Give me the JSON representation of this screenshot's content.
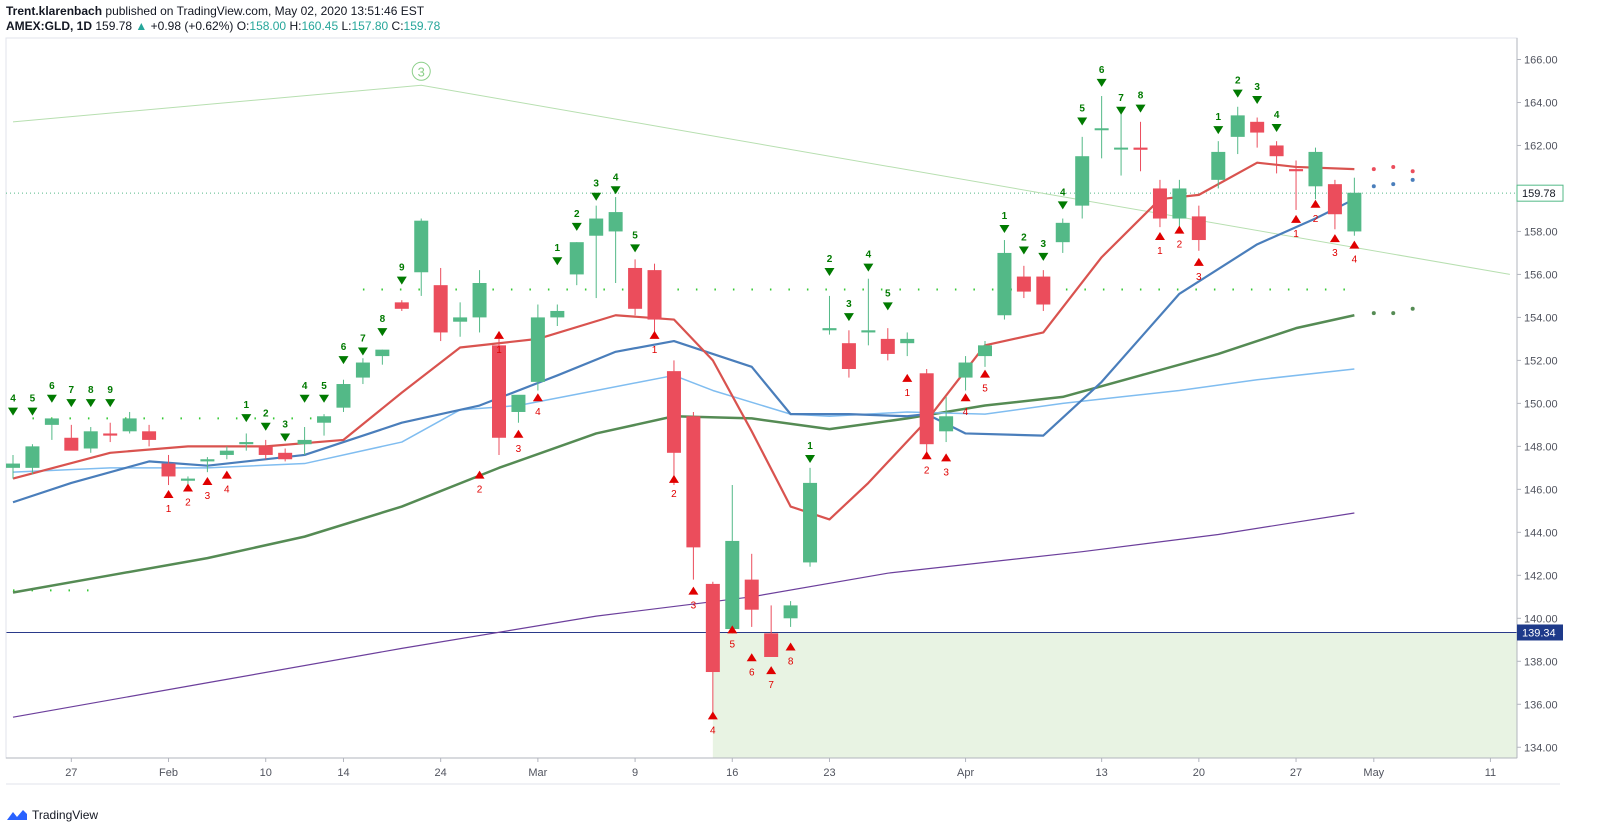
{
  "header": {
    "author": "Trent.klarenbach",
    "published": "published on TradingView.com, May 02, 2020 13:51:46 EST",
    "symbol": "AMEX:GLD, 1D",
    "last": "159.78",
    "change": "+0.98 (+0.62%)",
    "o_label": "O:",
    "o_value": "158.00",
    "h_label": "H:",
    "h_value": "160.45",
    "l_label": "L:",
    "l_value": "157.80",
    "c_label": "C:",
    "c_value": "159.78"
  },
  "footer": {
    "brand": "TradingView"
  },
  "colors": {
    "up": "#53b987",
    "down": "#eb4d5c",
    "ema_fast": "#d9534f",
    "ema_blue": "#4a7ebb",
    "ema_lightblue": "#80bdf0",
    "ema_green": "#558b54",
    "sma_purple": "#6c3f9c",
    "seq_green": "#007a00",
    "seq_red": "#e00000",
    "zone": "#e8f3e3",
    "hline": "#2a3a8a"
  },
  "chart_data": {
    "type": "candlestick",
    "ylim": [
      133.5,
      167.0
    ],
    "yticks": [
      "134.00",
      "136.00",
      "138.00",
      "140.00",
      "142.00",
      "144.00",
      "146.00",
      "148.00",
      "150.00",
      "152.00",
      "154.00",
      "156.00",
      "158.00",
      "160.00",
      "162.00",
      "164.00",
      "166.00"
    ],
    "xticks": [
      {
        "label": "27",
        "x": 3
      },
      {
        "label": "Feb",
        "x": 8
      },
      {
        "label": "10",
        "x": 13
      },
      {
        "label": "14",
        "x": 17
      },
      {
        "label": "24",
        "x": 22
      },
      {
        "label": "Mar",
        "x": 27
      },
      {
        "label": "9",
        "x": 32
      },
      {
        "label": "16",
        "x": 37
      },
      {
        "label": "23",
        "x": 42
      },
      {
        "label": "Apr",
        "x": 49
      },
      {
        "label": "13",
        "x": 56
      },
      {
        "label": "20",
        "x": 61
      },
      {
        "label": "27",
        "x": 66
      },
      {
        "label": "May",
        "x": 70
      },
      {
        "label": "11",
        "x": 76
      }
    ],
    "price_labels": {
      "last": "159.78",
      "line": "139.34"
    },
    "wave_label": "3",
    "candles": [
      {
        "x": 0,
        "o": 147.0,
        "h": 147.6,
        "l": 146.5,
        "c": 147.2
      },
      {
        "x": 1,
        "o": 147.0,
        "h": 148.1,
        "l": 146.7,
        "c": 148.0
      },
      {
        "x": 2,
        "o": 149.0,
        "h": 149.3,
        "l": 148.3,
        "c": 149.3
      },
      {
        "x": 3,
        "o": 148.4,
        "h": 149.0,
        "l": 148.0,
        "c": 147.8
      },
      {
        "x": 4,
        "o": 147.9,
        "h": 148.9,
        "l": 147.7,
        "c": 148.7
      },
      {
        "x": 5,
        "o": 148.6,
        "h": 149.1,
        "l": 148.2,
        "c": 148.5
      },
      {
        "x": 6,
        "o": 148.7,
        "h": 149.6,
        "l": 148.6,
        "c": 149.3
      },
      {
        "x": 7,
        "o": 148.7,
        "h": 149.0,
        "l": 148.0,
        "c": 148.3
      },
      {
        "x": 8,
        "o": 147.2,
        "h": 147.6,
        "l": 146.2,
        "c": 146.6
      },
      {
        "x": 9,
        "o": 146.4,
        "h": 146.6,
        "l": 146.2,
        "c": 146.5
      },
      {
        "x": 10,
        "o": 147.3,
        "h": 147.5,
        "l": 146.8,
        "c": 147.4
      },
      {
        "x": 11,
        "o": 147.6,
        "h": 148.0,
        "l": 147.4,
        "c": 147.8
      },
      {
        "x": 12,
        "o": 148.1,
        "h": 148.6,
        "l": 147.8,
        "c": 148.2
      },
      {
        "x": 13,
        "o": 148.0,
        "h": 148.3,
        "l": 147.4,
        "c": 147.6
      },
      {
        "x": 14,
        "o": 147.7,
        "h": 147.9,
        "l": 147.3,
        "c": 147.4
      },
      {
        "x": 15,
        "o": 148.1,
        "h": 148.9,
        "l": 147.6,
        "c": 148.3
      },
      {
        "x": 16,
        "o": 149.1,
        "h": 149.5,
        "l": 148.5,
        "c": 149.4
      },
      {
        "x": 17,
        "o": 149.8,
        "h": 151.1,
        "l": 149.6,
        "c": 150.9
      },
      {
        "x": 18,
        "o": 151.2,
        "h": 152.1,
        "l": 150.9,
        "c": 151.9
      },
      {
        "x": 19,
        "o": 152.2,
        "h": 152.5,
        "l": 151.8,
        "c": 152.5
      },
      {
        "x": 20,
        "o": 154.7,
        "h": 154.8,
        "l": 154.3,
        "c": 154.4
      },
      {
        "x": 21,
        "o": 156.1,
        "h": 158.6,
        "l": 155.0,
        "c": 158.5
      },
      {
        "x": 22,
        "o": 155.5,
        "h": 156.3,
        "l": 152.9,
        "c": 153.3
      },
      {
        "x": 23,
        "o": 153.8,
        "h": 154.7,
        "l": 153.1,
        "c": 154.0
      },
      {
        "x": 24,
        "o": 154.0,
        "h": 156.2,
        "l": 153.3,
        "c": 155.6
      },
      {
        "x": 25,
        "o": 152.7,
        "h": 153.0,
        "l": 147.6,
        "c": 148.4
      },
      {
        "x": 26,
        "o": 149.6,
        "h": 150.2,
        "l": 149.1,
        "c": 150.4
      },
      {
        "x": 27,
        "o": 151.0,
        "h": 154.6,
        "l": 150.6,
        "c": 154.0
      },
      {
        "x": 28,
        "o": 154.0,
        "h": 154.6,
        "l": 153.6,
        "c": 154.3
      },
      {
        "x": 29,
        "o": 156.0,
        "h": 157.5,
        "l": 155.5,
        "c": 157.5
      },
      {
        "x": 30,
        "o": 157.8,
        "h": 159.2,
        "l": 154.9,
        "c": 158.6
      },
      {
        "x": 31,
        "o": 158.0,
        "h": 159.6,
        "l": 155.6,
        "c": 158.9
      },
      {
        "x": 32,
        "o": 156.3,
        "h": 156.7,
        "l": 154.1,
        "c": 154.4
      },
      {
        "x": 33,
        "o": 156.2,
        "h": 156.5,
        "l": 153.3,
        "c": 153.9
      },
      {
        "x": 34,
        "o": 151.5,
        "h": 152.0,
        "l": 146.2,
        "c": 147.7
      },
      {
        "x": 35,
        "o": 149.4,
        "h": 149.6,
        "l": 141.8,
        "c": 143.3
      },
      {
        "x": 36,
        "o": 141.6,
        "h": 141.7,
        "l": 135.5,
        "c": 137.5
      },
      {
        "x": 37,
        "o": 139.5,
        "h": 146.2,
        "l": 139.3,
        "c": 143.6
      },
      {
        "x": 38,
        "o": 141.8,
        "h": 143.0,
        "l": 139.6,
        "c": 140.4
      },
      {
        "x": 39,
        "o": 139.3,
        "h": 140.6,
        "l": 138.4,
        "c": 138.2
      },
      {
        "x": 40,
        "o": 140.0,
        "h": 140.8,
        "l": 139.6,
        "c": 140.6
      },
      {
        "x": 41,
        "o": 142.6,
        "h": 147.0,
        "l": 142.4,
        "c": 146.3
      },
      {
        "x": 42,
        "o": 153.4,
        "h": 155.0,
        "l": 153.2,
        "c": 153.5
      },
      {
        "x": 43,
        "o": 152.8,
        "h": 153.4,
        "l": 151.2,
        "c": 151.6
      },
      {
        "x": 44,
        "o": 153.3,
        "h": 155.8,
        "l": 152.7,
        "c": 153.4
      },
      {
        "x": 45,
        "o": 153.0,
        "h": 153.5,
        "l": 152.0,
        "c": 152.3
      },
      {
        "x": 46,
        "o": 152.8,
        "h": 153.3,
        "l": 152.2,
        "c": 153.0
      },
      {
        "x": 47,
        "o": 151.4,
        "h": 151.6,
        "l": 147.5,
        "c": 148.1
      },
      {
        "x": 48,
        "o": 148.7,
        "h": 150.3,
        "l": 148.2,
        "c": 149.4
      },
      {
        "x": 49,
        "o": 151.2,
        "h": 152.2,
        "l": 150.6,
        "c": 151.9
      },
      {
        "x": 50,
        "o": 152.2,
        "h": 152.9,
        "l": 151.7,
        "c": 152.7
      },
      {
        "x": 51,
        "o": 154.1,
        "h": 157.6,
        "l": 153.9,
        "c": 157.0
      },
      {
        "x": 52,
        "o": 155.9,
        "h": 156.4,
        "l": 154.9,
        "c": 155.2
      },
      {
        "x": 53,
        "o": 155.9,
        "h": 156.2,
        "l": 154.3,
        "c": 154.6
      },
      {
        "x": 54,
        "o": 157.5,
        "h": 158.6,
        "l": 157.0,
        "c": 158.4
      },
      {
        "x": 55,
        "o": 159.2,
        "h": 162.4,
        "l": 158.6,
        "c": 161.5
      },
      {
        "x": 56,
        "o": 162.8,
        "h": 164.3,
        "l": 161.4,
        "c": 162.8
      },
      {
        "x": 57,
        "o": 161.9,
        "h": 163.5,
        "l": 160.6,
        "c": 161.9
      },
      {
        "x": 58,
        "o": 161.9,
        "h": 163.1,
        "l": 160.8,
        "c": 161.8
      },
      {
        "x": 59,
        "o": 160.0,
        "h": 160.4,
        "l": 158.2,
        "c": 158.6
      },
      {
        "x": 60,
        "o": 158.6,
        "h": 160.4,
        "l": 158.2,
        "c": 160.0
      },
      {
        "x": 61,
        "o": 158.7,
        "h": 159.2,
        "l": 157.1,
        "c": 157.6
      },
      {
        "x": 62,
        "o": 160.4,
        "h": 162.2,
        "l": 160.0,
        "c": 161.7
      },
      {
        "x": 63,
        "o": 162.4,
        "h": 163.8,
        "l": 161.6,
        "c": 163.4
      },
      {
        "x": 64,
        "o": 163.1,
        "h": 163.3,
        "l": 161.9,
        "c": 162.6
      },
      {
        "x": 65,
        "o": 162.0,
        "h": 162.2,
        "l": 160.7,
        "c": 161.5
      },
      {
        "x": 66,
        "o": 160.9,
        "h": 161.3,
        "l": 159.0,
        "c": 160.8
      },
      {
        "x": 67,
        "o": 160.1,
        "h": 161.9,
        "l": 159.5,
        "c": 161.7
      },
      {
        "x": 68,
        "o": 160.2,
        "h": 160.4,
        "l": 158.1,
        "c": 158.8
      },
      {
        "x": 69,
        "o": 158.0,
        "h": 160.5,
        "l": 157.8,
        "c": 159.8
      }
    ],
    "sma_purple": [
      [
        0,
        135.4
      ],
      [
        10,
        137.0
      ],
      [
        20,
        138.6
      ],
      [
        30,
        140.1
      ],
      [
        38,
        141.0
      ],
      [
        45,
        142.1
      ],
      [
        55,
        143.1
      ],
      [
        62,
        143.9
      ],
      [
        69,
        144.9
      ]
    ],
    "ema_green": [
      [
        0,
        141.2
      ],
      [
        5,
        142.0
      ],
      [
        10,
        142.8
      ],
      [
        15,
        143.8
      ],
      [
        20,
        145.2
      ],
      [
        25,
        147.0
      ],
      [
        30,
        148.6
      ],
      [
        34,
        149.4
      ],
      [
        38,
        149.3
      ],
      [
        42,
        148.8
      ],
      [
        46,
        149.3
      ],
      [
        50,
        149.9
      ],
      [
        54,
        150.3
      ],
      [
        58,
        151.3
      ],
      [
        62,
        152.3
      ],
      [
        66,
        153.5
      ],
      [
        69,
        154.1
      ]
    ],
    "ema_lightblue": [
      [
        0,
        146.8
      ],
      [
        5,
        147.0
      ],
      [
        10,
        147.0
      ],
      [
        15,
        147.2
      ],
      [
        20,
        148.2
      ],
      [
        23,
        149.7
      ],
      [
        26,
        149.9
      ],
      [
        30,
        150.6
      ],
      [
        34,
        151.3
      ],
      [
        36,
        150.6
      ],
      [
        40,
        149.5
      ],
      [
        42,
        149.4
      ],
      [
        46,
        149.6
      ],
      [
        50,
        149.5
      ],
      [
        54,
        150.0
      ],
      [
        57,
        150.3
      ],
      [
        60,
        150.6
      ],
      [
        64,
        151.1
      ],
      [
        69,
        151.6
      ]
    ],
    "ema_blue": [
      [
        0,
        145.4
      ],
      [
        3,
        146.3
      ],
      [
        7,
        147.3
      ],
      [
        10,
        147.1
      ],
      [
        15,
        147.6
      ],
      [
        20,
        149.1
      ],
      [
        24,
        149.9
      ],
      [
        28,
        151.3
      ],
      [
        31,
        152.4
      ],
      [
        34,
        152.9
      ],
      [
        38,
        151.7
      ],
      [
        40,
        149.5
      ],
      [
        43,
        149.5
      ],
      [
        46,
        149.4
      ],
      [
        47,
        149.5
      ],
      [
        49,
        148.6
      ],
      [
        53,
        148.5
      ],
      [
        56,
        151.0
      ],
      [
        60,
        155.1
      ],
      [
        64,
        157.4
      ],
      [
        67,
        158.6
      ],
      [
        69,
        159.5
      ]
    ],
    "ema_fast": [
      [
        0,
        146.5
      ],
      [
        5,
        147.7
      ],
      [
        9,
        148.0
      ],
      [
        13,
        148.0
      ],
      [
        17,
        148.3
      ],
      [
        20,
        150.5
      ],
      [
        23,
        152.6
      ],
      [
        27,
        153.0
      ],
      [
        31,
        154.1
      ],
      [
        34,
        153.9
      ],
      [
        36,
        152.0
      ],
      [
        38,
        148.7
      ],
      [
        40,
        145.2
      ],
      [
        42,
        144.6
      ],
      [
        44,
        146.3
      ],
      [
        47,
        149.2
      ],
      [
        50,
        152.7
      ],
      [
        53,
        153.3
      ],
      [
        56,
        156.8
      ],
      [
        59,
        159.5
      ],
      [
        61,
        159.7
      ],
      [
        64,
        161.2
      ],
      [
        66,
        161.0
      ],
      [
        69,
        160.9
      ]
    ],
    "projection_dots": [
      {
        "x": 70,
        "y": 160.1,
        "color": "#4a7ebb"
      },
      {
        "x": 71,
        "y": 160.2,
        "color": "#4a7ebb"
      },
      {
        "x": 72,
        "y": 160.4,
        "color": "#4a7ebb"
      },
      {
        "x": 70,
        "y": 160.9,
        "color": "#eb4d5c"
      },
      {
        "x": 71,
        "y": 161.0,
        "color": "#eb4d5c"
      },
      {
        "x": 72,
        "y": 160.8,
        "color": "#eb4d5c"
      },
      {
        "x": 70,
        "y": 154.2,
        "color": "#558b54"
      },
      {
        "x": 71,
        "y": 154.2,
        "color": "#558b54"
      },
      {
        "x": 72,
        "y": 154.4,
        "color": "#558b54"
      }
    ],
    "support_dotted": [
      {
        "x0": 1,
        "x1": 16,
        "y": 149.3
      },
      {
        "x0": 18,
        "x1": 69,
        "y": 155.3
      },
      {
        "x0": 0,
        "x1": 4,
        "y": 141.3
      }
    ],
    "trendline": [
      [
        0,
        163.1
      ],
      [
        21,
        164.8
      ],
      [
        77,
        156.0
      ]
    ],
    "seq_green": [
      {
        "x": 0,
        "n": "4",
        "y": 149.8
      },
      {
        "x": 1,
        "n": "5",
        "y": 149.8
      },
      {
        "x": 2,
        "n": "6",
        "y": 150.4
      },
      {
        "x": 3,
        "n": "7",
        "y": 150.2
      },
      {
        "x": 4,
        "n": "8",
        "y": 150.2
      },
      {
        "x": 5,
        "n": "9",
        "y": 150.2
      },
      {
        "x": 12,
        "n": "1",
        "y": 149.5
      },
      {
        "x": 13,
        "n": "2",
        "y": 149.1
      },
      {
        "x": 14,
        "n": "3",
        "y": 148.6
      },
      {
        "x": 15,
        "n": "4",
        "y": 150.4
      },
      {
        "x": 16,
        "n": "5",
        "y": 150.4
      },
      {
        "x": 17,
        "n": "6",
        "y": 152.2
      },
      {
        "x": 18,
        "n": "7",
        "y": 152.6
      },
      {
        "x": 19,
        "n": "8",
        "y": 153.5
      },
      {
        "x": 20,
        "n": "9",
        "y": 155.9
      },
      {
        "x": 28,
        "n": "1",
        "y": 156.8
      },
      {
        "x": 29,
        "n": "2",
        "y": 158.4
      },
      {
        "x": 30,
        "n": "3",
        "y": 159.8
      },
      {
        "x": 31,
        "n": "4",
        "y": 160.1
      },
      {
        "x": 32,
        "n": "5",
        "y": 157.4
      },
      {
        "x": 41,
        "n": "1",
        "y": 147.6
      },
      {
        "x": 42,
        "n": "2",
        "y": 156.3
      },
      {
        "x": 43,
        "n": "3",
        "y": 154.2
      },
      {
        "x": 44,
        "n": "4",
        "y": 156.5
      },
      {
        "x": 45,
        "n": "5",
        "y": 154.7
      },
      {
        "x": 51,
        "n": "1",
        "y": 158.3
      },
      {
        "x": 52,
        "n": "2",
        "y": 157.3
      },
      {
        "x": 53,
        "n": "3",
        "y": 157.0
      },
      {
        "x": 54,
        "n": "4",
        "y": 159.4
      },
      {
        "x": 55,
        "n": "5",
        "y": 163.3
      },
      {
        "x": 56,
        "n": "6",
        "y": 165.1
      },
      {
        "x": 57,
        "n": "7",
        "y": 163.8
      },
      {
        "x": 58,
        "n": "8",
        "y": 163.9
      },
      {
        "x": 62,
        "n": "1",
        "y": 162.9
      },
      {
        "x": 63,
        "n": "2",
        "y": 164.6
      },
      {
        "x": 64,
        "n": "3",
        "y": 164.3
      },
      {
        "x": 65,
        "n": "4",
        "y": 163.0
      }
    ],
    "seq_red": [
      {
        "x": 8,
        "n": "1",
        "y": 145.6
      },
      {
        "x": 9,
        "n": "2",
        "y": 145.9
      },
      {
        "x": 10,
        "n": "3",
        "y": 146.2
      },
      {
        "x": 11,
        "n": "4",
        "y": 146.5
      },
      {
        "x": 25,
        "n": "1",
        "y": 153.0
      },
      {
        "x": 24,
        "n": "2",
        "y": 146.5
      },
      {
        "x": 26,
        "n": "3",
        "y": 148.4
      },
      {
        "x": 27,
        "n": "4",
        "y": 150.1
      },
      {
        "x": 33,
        "n": "1",
        "y": 153.0
      },
      {
        "x": 34,
        "n": "2",
        "y": 146.3
      },
      {
        "x": 35,
        "n": "3",
        "y": 141.1
      },
      {
        "x": 36,
        "n": "4",
        "y": 135.3
      },
      {
        "x": 37,
        "n": "5",
        "y": 139.3
      },
      {
        "x": 38,
        "n": "6",
        "y": 138.0
      },
      {
        "x": 39,
        "n": "7",
        "y": 137.4
      },
      {
        "x": 40,
        "n": "8",
        "y": 138.5
      },
      {
        "x": 46,
        "n": "1",
        "y": 151.0
      },
      {
        "x": 47,
        "n": "2",
        "y": 147.4
      },
      {
        "x": 48,
        "n": "3",
        "y": 147.3
      },
      {
        "x": 49,
        "n": "4",
        "y": 150.1
      },
      {
        "x": 50,
        "n": "5",
        "y": 151.2
      },
      {
        "x": 59,
        "n": "1",
        "y": 157.6
      },
      {
        "x": 60,
        "n": "2",
        "y": 157.9
      },
      {
        "x": 61,
        "n": "3",
        "y": 156.4
      },
      {
        "x": 66,
        "n": "1",
        "y": 158.4
      },
      {
        "x": 67,
        "n": "2",
        "y": 159.1
      },
      {
        "x": 68,
        "n": "3",
        "y": 157.5
      },
      {
        "x": 69,
        "n": "4",
        "y": 157.2
      }
    ]
  }
}
